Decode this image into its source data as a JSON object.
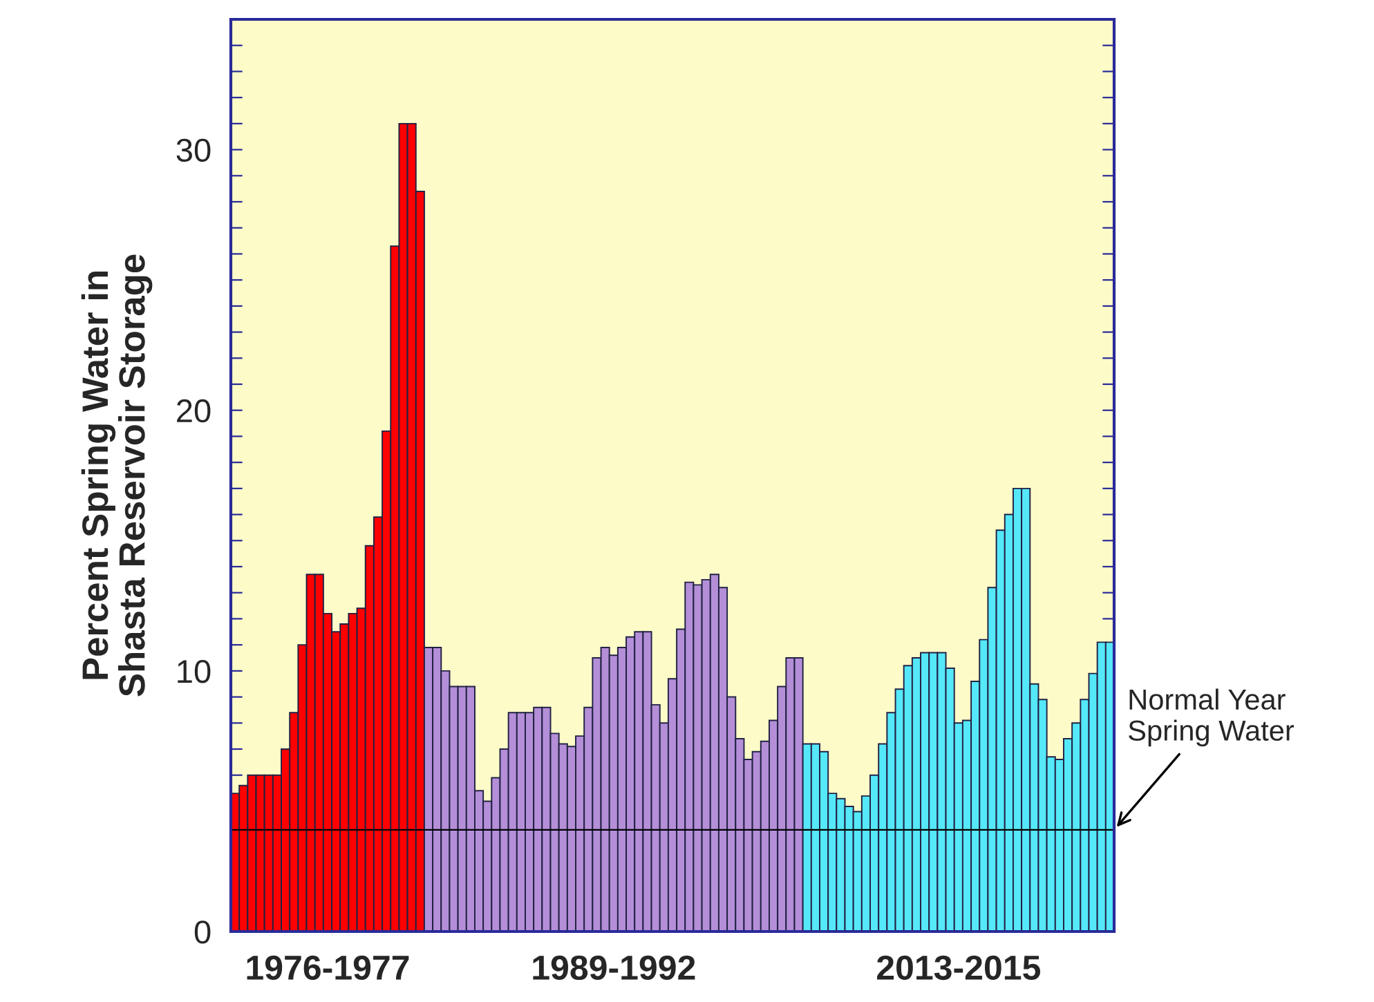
{
  "chart_data": {
    "type": "bar",
    "ylabel": "Percent Spring Water in\nShasta Reservoir Storage",
    "categories": [
      null,
      null,
      null,
      null,
      null,
      null,
      null,
      null,
      null,
      null,
      null,
      null,
      null,
      null,
      null,
      null,
      null,
      null,
      null,
      null,
      null,
      null,
      null,
      null,
      null,
      null,
      null,
      null,
      null,
      null,
      null,
      null,
      null,
      null,
      null,
      null,
      null,
      null,
      null,
      null,
      null,
      null,
      null,
      null,
      null,
      null,
      null,
      null,
      null,
      null,
      null,
      null,
      null,
      null,
      null,
      null,
      null,
      null,
      null,
      null,
      null,
      null,
      null,
      null,
      null,
      null,
      null,
      null,
      null,
      null,
      null,
      null,
      null,
      null,
      null,
      null,
      null,
      null,
      null,
      null,
      null,
      null,
      null,
      null,
      null,
      null,
      null,
      null,
      null,
      null,
      null,
      null,
      null,
      null,
      null,
      null,
      null,
      null,
      null,
      null,
      null,
      null,
      null,
      null,
      null
    ],
    "series": [
      {
        "color": "#ff0000",
        "values": [
          5.3,
          5.6,
          6.0,
          6.0,
          6.0,
          6.0,
          7.0,
          8.4,
          11.0,
          13.7,
          13.7,
          12.2,
          11.5,
          11.8,
          12.2,
          12.4,
          14.8,
          15.9,
          19.2,
          26.3,
          31.0,
          31.0,
          28.4,
          null,
          null,
          null,
          null,
          null,
          null,
          null,
          null,
          null,
          null,
          null,
          null,
          null,
          null,
          null,
          null,
          null,
          null,
          null,
          null,
          null,
          null,
          null,
          null,
          null,
          null,
          null,
          null,
          null,
          null,
          null,
          null,
          null,
          null,
          null,
          null,
          null,
          null,
          null,
          null,
          null,
          null,
          null,
          null,
          null,
          null,
          null,
          null,
          null,
          null,
          null,
          null,
          null,
          null,
          null,
          null,
          null,
          null,
          null,
          null,
          null,
          null,
          null,
          null,
          null,
          null,
          null,
          null,
          null,
          null,
          null,
          null,
          null,
          null,
          null,
          null,
          null,
          null,
          null,
          null,
          null,
          null
        ]
      },
      {
        "color": "#b48fd8",
        "values": [
          null,
          null,
          null,
          null,
          null,
          null,
          null,
          null,
          null,
          null,
          null,
          null,
          null,
          null,
          null,
          null,
          null,
          null,
          null,
          null,
          null,
          null,
          null,
          10.9,
          10.9,
          10.0,
          9.4,
          9.4,
          9.4,
          5.4,
          5.0,
          5.9,
          7.0,
          8.4,
          8.4,
          8.4,
          8.6,
          8.6,
          7.6,
          7.2,
          7.1,
          7.5,
          8.6,
          10.5,
          10.9,
          10.6,
          10.9,
          11.3,
          11.5,
          11.5,
          8.7,
          8.0,
          9.7,
          11.6,
          13.4,
          13.3,
          13.5,
          13.7,
          13.2,
          9.0,
          7.4,
          6.6,
          6.9,
          7.3,
          8.1,
          9.4,
          10.5,
          10.5,
          null,
          null,
          null,
          null,
          null,
          null,
          null,
          null,
          null,
          null,
          null,
          null,
          null,
          null,
          null,
          null,
          null,
          null,
          null,
          null,
          null,
          null,
          null,
          null,
          null,
          null,
          null,
          null,
          null,
          null,
          null,
          null,
          null,
          null,
          null,
          null,
          null
        ]
      },
      {
        "color": "#55e8f8",
        "values": [
          null,
          null,
          null,
          null,
          null,
          null,
          null,
          null,
          null,
          null,
          null,
          null,
          null,
          null,
          null,
          null,
          null,
          null,
          null,
          null,
          null,
          null,
          null,
          null,
          null,
          null,
          null,
          null,
          null,
          null,
          null,
          null,
          null,
          null,
          null,
          null,
          null,
          null,
          null,
          null,
          null,
          null,
          null,
          null,
          null,
          null,
          null,
          null,
          null,
          null,
          null,
          null,
          null,
          null,
          null,
          null,
          null,
          null,
          null,
          null,
          null,
          null,
          null,
          null,
          null,
          null,
          null,
          null,
          7.2,
          7.2,
          6.9,
          5.3,
          5.1,
          4.8,
          4.6,
          5.2,
          6.0,
          7.2,
          8.4,
          9.3,
          10.2,
          10.5,
          10.7,
          10.7,
          10.7,
          10.1,
          8.0,
          8.1,
          9.6,
          11.2,
          13.2,
          15.4,
          16.0,
          17.0,
          17.0,
          9.5,
          8.9,
          6.7,
          6.6,
          7.4,
          8.0,
          8.9,
          9.9,
          11.1,
          11.1
        ]
      }
    ],
    "annotations": [
      "1976-1977",
      "1989-1992",
      "2013-2015"
    ],
    "ref_lines": [
      {
        "axis": "y",
        "value": 3.9,
        "label": "Normal Year\nSpring Water",
        "color": "#000000"
      }
    ],
    "ylim": [
      0,
      35
    ],
    "yticks": [
      0,
      {
        "value": 1,
        "label": null
      },
      {
        "value": 2,
        "label": null
      },
      {
        "value": 3,
        "label": null
      },
      {
        "value": 4,
        "label": null
      },
      {
        "value": 5,
        "label": null
      },
      {
        "value": 6,
        "label": null
      },
      {
        "value": 7,
        "label": null
      },
      {
        "value": 8,
        "label": null
      },
      {
        "value": 9,
        "label": null
      },
      10,
      {
        "value": 11,
        "label": null
      },
      {
        "value": 12,
        "label": null
      },
      {
        "value": 13,
        "label": null
      },
      {
        "value": 14,
        "label": null
      },
      {
        "value": 15,
        "label": null
      },
      {
        "value": 16,
        "label": null
      },
      {
        "value": 17,
        "label": null
      },
      {
        "value": 18,
        "label": null
      },
      {
        "value": 19,
        "label": null
      },
      20,
      {
        "value": 21,
        "label": null
      },
      {
        "value": 22,
        "label": null
      },
      {
        "value": 23,
        "label": null
      },
      {
        "value": 24,
        "label": null
      },
      {
        "value": 25,
        "label": null
      },
      {
        "value": 26,
        "label": null
      },
      {
        "value": 27,
        "label": null
      },
      {
        "value": 28,
        "label": null
      },
      {
        "value": 29,
        "label": null
      },
      30,
      {
        "value": 31,
        "label": null
      },
      {
        "value": 32,
        "label": null
      },
      {
        "value": 33,
        "label": null
      },
      {
        "value": 34,
        "label": null
      },
      {
        "value": 35,
        "label": null
      }
    ],
    "grid": false,
    "legend": false
  }
}
